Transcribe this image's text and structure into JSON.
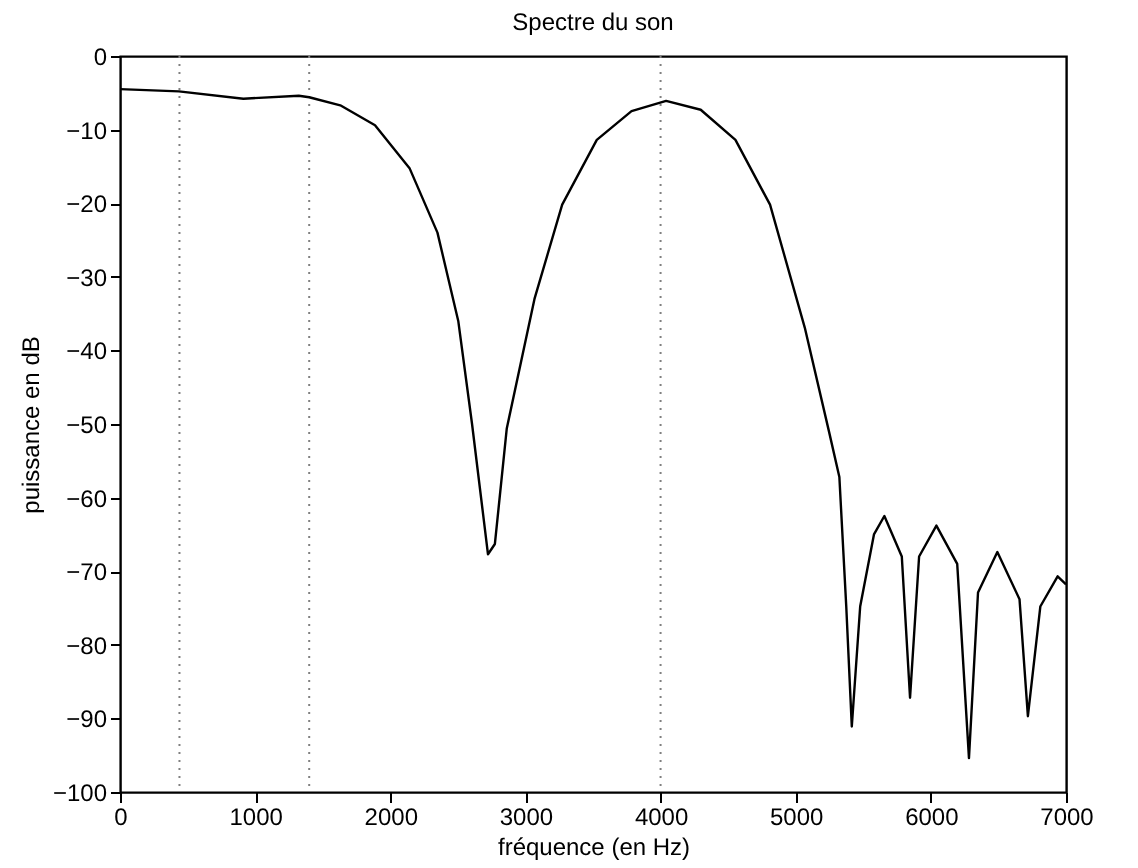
{
  "chart_data": {
    "type": "line",
    "title": "Spectre du son",
    "xlabel": "fréquence (en Hz)",
    "ylabel": "puissance en dB",
    "xlim": [
      0,
      7000
    ],
    "ylim": [
      -100,
      0
    ],
    "xticks": [
      0,
      1000,
      2000,
      3000,
      4000,
      5000,
      6000,
      7000
    ],
    "yticks": [
      -100,
      -90,
      -80,
      -70,
      -60,
      -50,
      -40,
      -30,
      -20,
      -10,
      0
    ],
    "grid": false,
    "marker": "none",
    "line_style": "solid",
    "ref_lines": [
      {
        "axis": "x",
        "value": 440,
        "color": "#808080",
        "line_style": "dotted"
      },
      {
        "axis": "x",
        "value": 1400,
        "color": "#808080",
        "line_style": "dotted"
      },
      {
        "axis": "x",
        "value": 4000,
        "color": "#808080",
        "line_style": "dotted"
      }
    ],
    "series": [
      {
        "color": "#000000",
        "x": [
          0,
          436,
          913,
          1323,
          1400,
          1630,
          1887,
          2144,
          2349,
          2503,
          2605,
          2723,
          2774,
          2862,
          3067,
          3272,
          3528,
          3785,
          4041,
          4297,
          4554,
          4810,
          5067,
          5246,
          5323,
          5374,
          5415,
          5477,
          5579,
          5656,
          5785,
          5846,
          5913,
          6041,
          6195,
          6282,
          6349,
          6492,
          6656,
          6718,
          6810,
          6938,
          7000
        ],
        "values": [
          -4.5,
          -4.8,
          -5.8,
          -5.4,
          -5.6,
          -6.7,
          -9.4,
          -15.3,
          -24,
          -36,
          -50,
          -67.7,
          -66.3,
          -50.6,
          -33,
          -20.2,
          -11.4,
          -7.5,
          -6.1,
          -7.3,
          -11.4,
          -20.2,
          -36.9,
          -51,
          -57.2,
          -74.8,
          -91.1,
          -74.8,
          -65,
          -62.5,
          -68,
          -87.2,
          -68,
          -63.8,
          -69,
          -95.4,
          -72.9,
          -67.4,
          -73.8,
          -89.7,
          -74.8,
          -70.7,
          -71.8
        ]
      }
    ]
  }
}
